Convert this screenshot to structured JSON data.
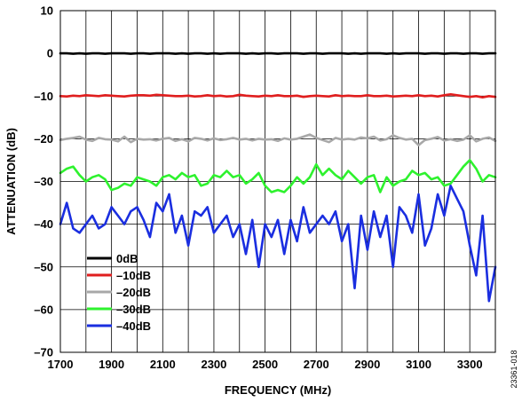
{
  "figure_id": "23361-018",
  "chart_data": {
    "type": "line",
    "xlabel": "FREQUENCY (MHz)",
    "ylabel": "ATTENUATION (dB)",
    "xlim": [
      1700,
      3400
    ],
    "ylim": [
      -70,
      10
    ],
    "xticks": [
      "1700",
      "1900",
      "2100",
      "2300",
      "2500",
      "2700",
      "2900",
      "3100",
      "3300"
    ],
    "yticks": [
      "10",
      "0",
      "–10",
      "–20",
      "–30",
      "–40",
      "–50",
      "–60",
      "–70"
    ],
    "grid": true,
    "legend_position": "bottom-left",
    "x": [
      1700,
      1725,
      1750,
      1775,
      1800,
      1825,
      1850,
      1875,
      1900,
      1925,
      1950,
      1975,
      2000,
      2025,
      2050,
      2075,
      2100,
      2125,
      2150,
      2175,
      2200,
      2225,
      2250,
      2275,
      2300,
      2325,
      2350,
      2375,
      2400,
      2425,
      2450,
      2475,
      2500,
      2525,
      2550,
      2575,
      2600,
      2625,
      2650,
      2675,
      2700,
      2725,
      2750,
      2775,
      2800,
      2825,
      2850,
      2875,
      2900,
      2925,
      2950,
      2975,
      3000,
      3025,
      3050,
      3075,
      3100,
      3125,
      3150,
      3175,
      3200,
      3225,
      3250,
      3275,
      3300,
      3325,
      3350,
      3375,
      3400
    ],
    "series": [
      {
        "name": "0dB",
        "color": "#000000",
        "values": [
          0.0,
          0.0,
          -0.1,
          0.0,
          -0.1,
          0.0,
          0.0,
          -0.1,
          0.0,
          0.0,
          0.0,
          -0.1,
          0.0,
          0.0,
          -0.1,
          0.0,
          0.0,
          0.0,
          -0.1,
          0.0,
          -0.1,
          0.0,
          0.0,
          -0.1,
          0.0,
          -0.1,
          0.0,
          0.0,
          0.0,
          -0.1,
          0.0,
          -0.1,
          0.0,
          0.0,
          -0.1,
          0.0,
          0.0,
          0.0,
          -0.1,
          0.0,
          0.0,
          -0.1,
          0.0,
          0.0,
          0.0,
          -0.1,
          0.0,
          -0.1,
          0.0,
          0.0,
          0.0,
          -0.1,
          0.0,
          -0.1,
          0.0,
          0.0,
          0.0,
          -0.1,
          0.0,
          0.0,
          -0.1,
          0.0,
          0.0,
          -0.1,
          0.0,
          0.0,
          -0.1,
          0.0,
          0.0
        ]
      },
      {
        "name": "–10dB",
        "color": "#e01e1e",
        "values": [
          -10.0,
          -10.1,
          -9.9,
          -10.0,
          -9.8,
          -9.9,
          -10.0,
          -9.8,
          -9.9,
          -10.0,
          -10.1,
          -9.9,
          -9.8,
          -9.8,
          -9.9,
          -9.7,
          -9.8,
          -9.9,
          -10.0,
          -10.0,
          -9.9,
          -10.1,
          -10.0,
          -9.8,
          -10.0,
          -9.9,
          -10.1,
          -10.0,
          -9.7,
          -9.9,
          -10.0,
          -10.1,
          -9.9,
          -10.0,
          -9.8,
          -10.0,
          -10.0,
          -9.9,
          -10.2,
          -10.0,
          -9.9,
          -10.0,
          -10.1,
          -9.8,
          -10.0,
          -9.9,
          -10.0,
          -10.0,
          -9.8,
          -10.0,
          -10.0,
          -9.9,
          -10.1,
          -10.0,
          -9.9,
          -10.0,
          -9.8,
          -10.0,
          -9.9,
          -10.1,
          -9.8,
          -9.6,
          -9.8,
          -10.0,
          -10.2,
          -10.0,
          -10.3,
          -10.0,
          -10.2
        ]
      },
      {
        "name": "–20dB",
        "color": "#a8a8a8",
        "values": [
          -20.3,
          -20.0,
          -19.8,
          -19.5,
          -20.2,
          -20.5,
          -19.8,
          -20.1,
          -20.2,
          -20.6,
          -19.5,
          -20.8,
          -20.0,
          -20.2,
          -20.1,
          -20.4,
          -20.0,
          -19.8,
          -20.5,
          -20.1,
          -20.6,
          -19.8,
          -20.0,
          -20.4,
          -19.9,
          -20.3,
          -20.1,
          -19.8,
          -20.2,
          -20.0,
          -20.4,
          -20.0,
          -20.2,
          -20.1,
          -20.5,
          -19.9,
          -20.2,
          -20.0,
          -19.5,
          -19.0,
          -19.8,
          -20.3,
          -20.8,
          -19.8,
          -20.2,
          -20.0,
          -20.2,
          -19.7,
          -19.9,
          -19.5,
          -20.4,
          -20.1,
          -19.2,
          -19.8,
          -20.2,
          -20.0,
          -21.5,
          -20.3,
          -20.0,
          -19.6,
          -20.4,
          -20.1,
          -20.5,
          -20.2,
          -19.2,
          -20.6,
          -20.0,
          -19.7,
          -20.5
        ]
      },
      {
        "name": "–30dB",
        "color": "#2ef22e",
        "values": [
          -28.0,
          -27.0,
          -26.5,
          -28.5,
          -30.0,
          -29.0,
          -28.5,
          -29.5,
          -32.0,
          -31.5,
          -30.5,
          -31.0,
          -29.0,
          -29.5,
          -30.0,
          -31.0,
          -29.0,
          -28.5,
          -29.5,
          -28.0,
          -29.0,
          -28.5,
          -31.0,
          -30.5,
          -28.5,
          -29.0,
          -27.5,
          -29.0,
          -28.5,
          -30.5,
          -29.5,
          -28.0,
          -31.0,
          -32.5,
          -32.0,
          -32.5,
          -31.0,
          -29.0,
          -30.5,
          -29.0,
          -26.0,
          -28.5,
          -27.0,
          -28.5,
          -29.5,
          -27.5,
          -29.0,
          -30.5,
          -29.0,
          -28.5,
          -32.5,
          -29.0,
          -31.0,
          -30.0,
          -29.5,
          -27.5,
          -28.5,
          -28.0,
          -29.5,
          -29.0,
          -31.0,
          -30.5,
          -28.5,
          -26.5,
          -25.0,
          -27.0,
          -30.0,
          -28.5,
          -29.0
        ]
      },
      {
        "name": "–40dB",
        "color": "#1a2ee0",
        "values": [
          -40.0,
          -35.0,
          -41.0,
          -42.0,
          -40.0,
          -38.0,
          -41.0,
          -40.0,
          -36.0,
          -38.0,
          -40.0,
          -37.0,
          -36.0,
          -39.0,
          -43.0,
          -35.0,
          -37.0,
          -33.0,
          -42.0,
          -38.0,
          -45.0,
          -37.0,
          -38.0,
          -36.0,
          -42.0,
          -40.0,
          -38.0,
          -43.0,
          -40.0,
          -47.0,
          -39.0,
          -50.0,
          -40.0,
          -43.0,
          -39.0,
          -47.0,
          -39.0,
          -44.0,
          -36.0,
          -42.0,
          -40.0,
          -38.0,
          -40.0,
          -37.0,
          -44.0,
          -40.0,
          -55.0,
          -38.0,
          -46.0,
          -37.0,
          -43.0,
          -38.0,
          -50.0,
          -36.0,
          -38.0,
          -42.0,
          -33.0,
          -45.0,
          -41.0,
          -33.0,
          -38.0,
          -31.0,
          -34.0,
          -37.0,
          -45.0,
          -52.0,
          -38.0,
          -58.0,
          -50.0
        ]
      }
    ]
  }
}
